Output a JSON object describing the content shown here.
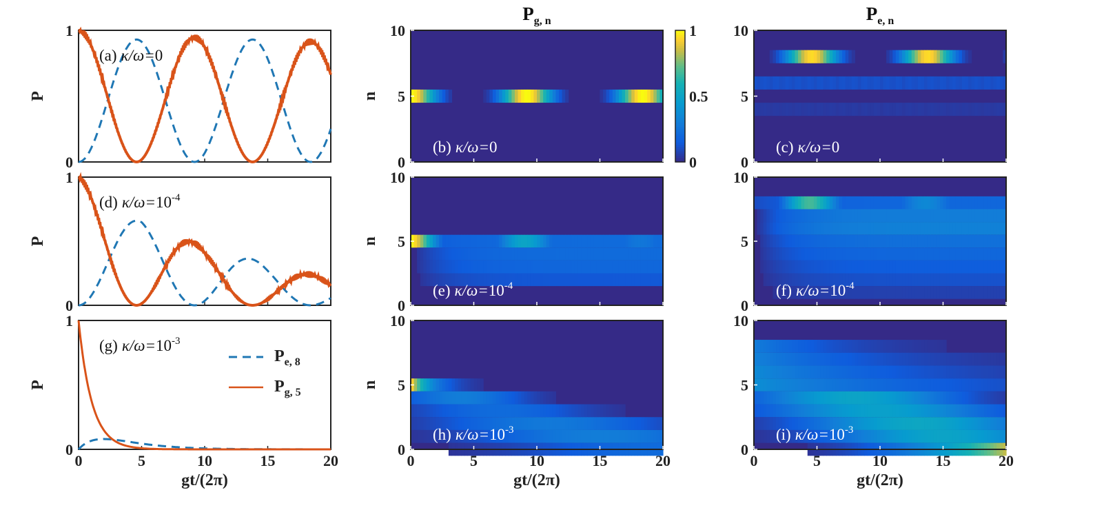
{
  "figure": {
    "col_titles": [
      {
        "main": "P",
        "sub": "g, n"
      },
      {
        "main": "P",
        "sub": "e, n"
      }
    ],
    "colorbar": {
      "ticks": [
        "1",
        "0.5",
        "0"
      ],
      "range": [
        0,
        1
      ],
      "colormap": "parula"
    },
    "colors": {
      "pe8": "#1f77b4",
      "pg5": "#d95319",
      "heat_bg": "#352a87",
      "axes": "#222222"
    }
  },
  "chart_data": [
    {
      "id": "a",
      "type": "line",
      "label": "(a)",
      "param": {
        "text": "κ/ω=",
        "base": "0",
        "exp": ""
      },
      "ylabel": "P",
      "xlabel": "",
      "xlim": [
        0,
        20
      ],
      "ylim": [
        0,
        1
      ],
      "xticks": [
        "0",
        "5",
        "10",
        "15",
        "20"
      ],
      "yticks": [
        "0",
        "1"
      ],
      "series": [
        {
          "name": "Pe,8",
          "style": "dashed",
          "envelope": [
            0.93,
            0.93,
            0.93,
            0.93,
            0.93
          ],
          "period": 9.2
        },
        {
          "name": "Pg,5",
          "style": "solid",
          "envelope": [
            1.0,
            0.97,
            0.94,
            0.92,
            0.91
          ],
          "period": 9.2
        }
      ]
    },
    {
      "id": "d",
      "type": "line",
      "label": "(d)",
      "param": {
        "text": "κ/ω=",
        "base": "10",
        "exp": "-4"
      },
      "ylabel": "P",
      "xlabel": "",
      "xlim": [
        0,
        20
      ],
      "ylim": [
        0,
        1
      ],
      "xticks": [
        "0",
        "5",
        "10",
        "15",
        "20"
      ],
      "yticks": [
        "0",
        "1"
      ],
      "series": [
        {
          "name": "Pe,8",
          "style": "dashed",
          "envelope": [
            0.66,
            0.66,
            0.48,
            0.32,
            0.21
          ],
          "period": 9.2
        },
        {
          "name": "Pg,5",
          "style": "solid",
          "envelope": [
            1.0,
            0.72,
            0.44,
            0.3,
            0.21
          ],
          "period": 9.2
        }
      ]
    },
    {
      "id": "g",
      "type": "line",
      "label": "(g)",
      "param": {
        "text": "κ/ω=",
        "base": "10",
        "exp": "-3"
      },
      "ylabel": "P",
      "xlabel": "gt/(2π)",
      "xlim": [
        0,
        20
      ],
      "ylim": [
        0,
        1
      ],
      "xticks": [
        "0",
        "5",
        "10",
        "15",
        "20"
      ],
      "yticks": [
        "0",
        "1"
      ],
      "legend": {
        "location": "center-right",
        "entries": [
          {
            "main": "P",
            "sub": "e, 8"
          },
          {
            "main": "P",
            "sub": "g, 5"
          }
        ]
      },
      "series": [
        {
          "name": "Pe,8",
          "style": "dashed",
          "peak": 0.08,
          "peak_x": 2.0
        },
        {
          "name": "Pg,5",
          "style": "solid",
          "decay_rate": 0.95
        }
      ]
    },
    {
      "id": "b",
      "type": "heatmap",
      "label": "(b)",
      "param": {
        "text": "κ/ω=",
        "base": "0",
        "exp": ""
      },
      "ylabel": "n",
      "xlabel": "",
      "xlim": [
        0,
        20
      ],
      "ylim": [
        0,
        10
      ],
      "xticks": [
        "0",
        "5",
        "10",
        "15",
        "20"
      ],
      "yticks": [
        "0",
        "5",
        "10"
      ],
      "rows": [
        {
          "n": 5,
          "model": "sin2",
          "amp": 1.0,
          "period": 9.2,
          "phase": 0.5,
          "base": 0.0
        }
      ]
    },
    {
      "id": "c",
      "type": "heatmap",
      "label": "(c)",
      "param": {
        "text": "κ/ω=",
        "base": "0",
        "exp": ""
      },
      "ylabel": "",
      "xlabel": "",
      "xlim": [
        0,
        20
      ],
      "ylim": [
        0,
        10
      ],
      "xticks": [
        "0",
        "5",
        "10",
        "15",
        "20"
      ],
      "yticks": [
        "0",
        "5",
        "10"
      ],
      "rows": [
        {
          "n": 8,
          "model": "sin2",
          "amp": 0.95,
          "period": 9.2,
          "phase": 0.0,
          "base": 0.0
        },
        {
          "n": 6,
          "model": "flat",
          "amp": 0.12
        },
        {
          "n": 4,
          "model": "flat",
          "amp": 0.05
        }
      ]
    },
    {
      "id": "e",
      "type": "heatmap",
      "label": "(e)",
      "param": {
        "text": "κ/ω=",
        "base": "10",
        "exp": "-4"
      },
      "ylabel": "n",
      "xlabel": "",
      "xlim": [
        0,
        20
      ],
      "ylim": [
        0,
        10
      ],
      "xticks": [
        "0",
        "5",
        "10",
        "15",
        "20"
      ],
      "yticks": [
        "0",
        "5",
        "10"
      ],
      "rows": [
        {
          "n": 5,
          "model": "sin2",
          "amp": 1.0,
          "period": 9.2,
          "phase": 0.5,
          "decay": 0.06,
          "base": 0.12
        },
        {
          "n": 4,
          "model": "grow",
          "amp": 0.22
        },
        {
          "n": 3,
          "model": "grow",
          "amp": 0.2
        },
        {
          "n": 2,
          "model": "grow",
          "amp": 0.14
        }
      ]
    },
    {
      "id": "f",
      "type": "heatmap",
      "label": "(f)",
      "param": {
        "text": "κ/ω=",
        "base": "10",
        "exp": "-4"
      },
      "ylabel": "",
      "xlabel": "",
      "xlim": [
        0,
        20
      ],
      "ylim": [
        0,
        10
      ],
      "xticks": [
        "0",
        "5",
        "10",
        "15",
        "20"
      ],
      "yticks": [
        "0",
        "5",
        "10"
      ],
      "rows": [
        {
          "n": 8,
          "model": "sin2",
          "amp": 0.95,
          "period": 9.2,
          "phase": 0.0,
          "decay": 0.06,
          "base": 0.1
        },
        {
          "n": 7,
          "model": "grow",
          "amp": 0.3
        },
        {
          "n": 6,
          "model": "grow",
          "amp": 0.32
        },
        {
          "n": 5,
          "model": "grow",
          "amp": 0.24
        },
        {
          "n": 4,
          "model": "grow",
          "amp": 0.2
        },
        {
          "n": 3,
          "model": "grow",
          "amp": 0.16
        },
        {
          "n": 2,
          "model": "grow",
          "amp": 0.12
        },
        {
          "n": 1,
          "model": "grow",
          "amp": 0.07
        }
      ]
    },
    {
      "id": "h",
      "type": "heatmap",
      "label": "(h)",
      "param": {
        "text": "κ/ω=",
        "base": "10",
        "exp": "-3"
      },
      "ylabel": "n",
      "xlabel": "gt/(2π)",
      "xlim": [
        0,
        20
      ],
      "ylim": [
        0,
        10
      ],
      "xticks": [
        "0",
        "5",
        "10",
        "15",
        "20"
      ],
      "yticks": [
        "0",
        "5",
        "10"
      ],
      "rows": [
        {
          "n": 5,
          "model": "decay",
          "amp": 1.0,
          "rate": 0.6
        },
        {
          "n": 4,
          "model": "pulse",
          "amp": 0.3,
          "t0": 4.0,
          "w": 5.0
        },
        {
          "n": 3,
          "model": "pulse",
          "amp": 0.22,
          "t0": 7.0,
          "w": 7.0
        },
        {
          "n": 2,
          "model": "pulse",
          "amp": 0.28,
          "t0": 11.0,
          "w": 9.0
        },
        {
          "n": 1,
          "model": "pulse",
          "amp": 0.3,
          "t0": 15.0,
          "w": 10.0
        },
        {
          "n": 0,
          "model": "pulse",
          "amp": 0.22,
          "t0": 20.0,
          "w": 12.0
        }
      ]
    },
    {
      "id": "i",
      "type": "heatmap",
      "label": "(i)",
      "param": {
        "text": "κ/ω=",
        "base": "10",
        "exp": "-3"
      },
      "ylabel": "",
      "xlabel": "gt/(2π)",
      "xlim": [
        0,
        20
      ],
      "ylim": [
        0,
        10
      ],
      "xticks": [
        "0",
        "5",
        "10",
        "15",
        "20"
      ],
      "yticks": [
        "0",
        "5",
        "10"
      ],
      "rows": [
        {
          "n": 8,
          "model": "decay",
          "amp": 0.3,
          "rate": 0.15
        },
        {
          "n": 7,
          "model": "decay",
          "amp": 0.32,
          "rate": 0.1
        },
        {
          "n": 6,
          "model": "decay",
          "amp": 0.36,
          "rate": 0.08
        },
        {
          "n": 5,
          "model": "decay",
          "amp": 0.38,
          "rate": 0.06
        },
        {
          "n": 4,
          "model": "pulse",
          "amp": 0.5,
          "t0": 8.0,
          "w": 8.0
        },
        {
          "n": 3,
          "model": "pulse",
          "amp": 0.48,
          "t0": 10.0,
          "w": 9.0
        },
        {
          "n": 2,
          "model": "pulse",
          "amp": 0.52,
          "t0": 13.0,
          "w": 9.0
        },
        {
          "n": 1,
          "model": "pulse",
          "amp": 0.5,
          "t0": 15.0,
          "w": 9.0
        },
        {
          "n": 0,
          "model": "grow2",
          "amp": 0.85
        }
      ]
    }
  ]
}
